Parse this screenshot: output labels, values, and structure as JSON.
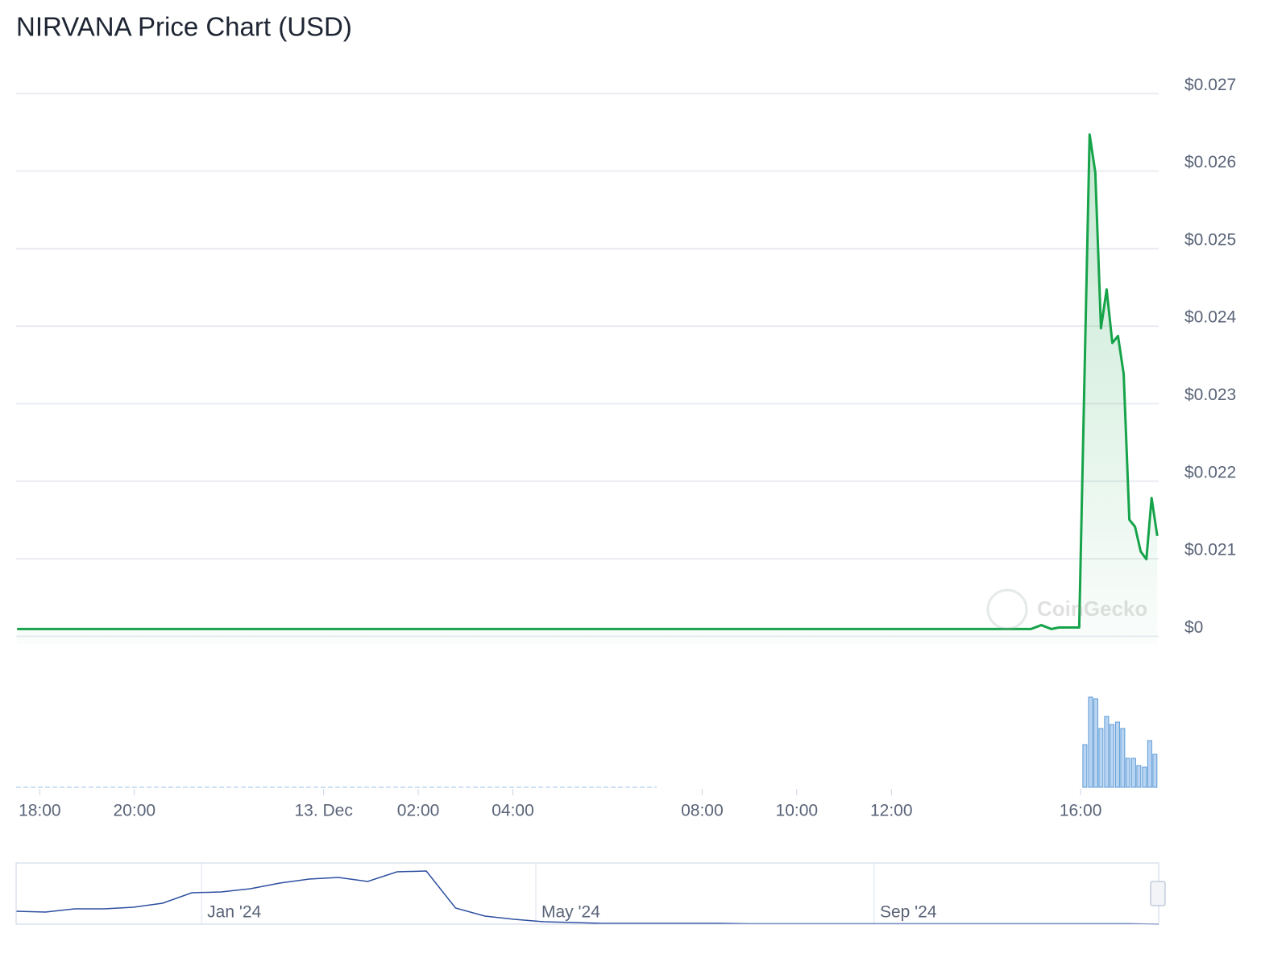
{
  "chart_data": {
    "type": "line",
    "title": "NIRVANA Price Chart (USD)",
    "watermark": "CoinGecko",
    "grid": true,
    "color": "#16a34a",
    "xlim": [
      17.5,
      41.65
    ],
    "xticks": [
      {
        "value": 18,
        "label": "18:00"
      },
      {
        "value": 20,
        "label": "20:00"
      },
      {
        "value": 24,
        "label": "13. Dec"
      },
      {
        "value": 26,
        "label": "02:00"
      },
      {
        "value": 28,
        "label": "04:00"
      },
      {
        "value": 32,
        "label": "08:00"
      },
      {
        "value": 34,
        "label": "10:00"
      },
      {
        "value": 36,
        "label": "12:00"
      },
      {
        "value": 40,
        "label": "16:00"
      }
    ],
    "ylim": [
      0.0199,
      0.0272
    ],
    "yticks": [
      {
        "value": 0.02,
        "label": "$0"
      },
      {
        "value": 0.021,
        "label": "$0.021"
      },
      {
        "value": 0.022,
        "label": "$0.022"
      },
      {
        "value": 0.023,
        "label": "$0.023"
      },
      {
        "value": 0.024,
        "label": "$0.024"
      },
      {
        "value": 0.025,
        "label": "$0.025"
      },
      {
        "value": 0.026,
        "label": "$0.026"
      },
      {
        "value": 0.027,
        "label": "$0.027"
      }
    ],
    "series": [
      {
        "name": "Price",
        "x": [
          17.52,
          19.5,
          22,
          24,
          26,
          28,
          28.3,
          30,
          34,
          36,
          38.95,
          39.17,
          39.38,
          39.55,
          39.97,
          40.19,
          40.31,
          40.43,
          40.55,
          40.67,
          40.79,
          40.91,
          41.03,
          41.15,
          41.27,
          41.39,
          41.5,
          41.62
        ],
        "values": [
          0.02,
          0.02,
          0.02,
          0.02,
          0.02,
          0.02,
          0.02,
          0.02,
          0.02,
          0.02,
          0.02,
          0.02005,
          0.02,
          0.02002,
          0.02002,
          0.02638,
          0.02589,
          0.02388,
          0.02438,
          0.02369,
          0.02378,
          0.02329,
          0.02141,
          0.02132,
          0.021,
          0.0209,
          0.02169,
          0.0212
        ]
      }
    ],
    "volume": {
      "color": "#5b9bd5",
      "ylim": [
        0,
        120
      ],
      "x": [
        40.09,
        40.21,
        40.32,
        40.43,
        40.55,
        40.66,
        40.78,
        40.89,
        41.0,
        41.12,
        41.23,
        41.35,
        41.46,
        41.57
      ],
      "values": [
        53,
        112,
        110,
        73,
        88,
        78,
        81,
        73,
        36,
        36,
        27,
        25,
        58,
        41
      ]
    },
    "navigator": {
      "color": "#2d4fa0",
      "xlim": [
        0,
        39
      ],
      "ylim": [
        0,
        76
      ],
      "xticks": [
        {
          "value": 6.33,
          "label": "Jan '24"
        },
        {
          "value": 17.74,
          "label": "May '24"
        },
        {
          "value": 29.29,
          "label": "Sep '24"
        }
      ],
      "values": [
        16,
        15,
        19,
        19,
        21,
        26,
        39,
        40,
        44,
        51,
        56,
        58,
        53,
        65,
        66,
        20,
        10,
        6,
        3,
        2,
        1,
        1,
        1,
        1,
        1,
        0.5,
        0.5,
        0.5,
        0.5,
        0.5,
        0.5,
        0.5,
        0.5,
        0.5,
        0.5,
        0.5,
        0.5,
        0.5,
        0.5,
        0
      ]
    }
  }
}
